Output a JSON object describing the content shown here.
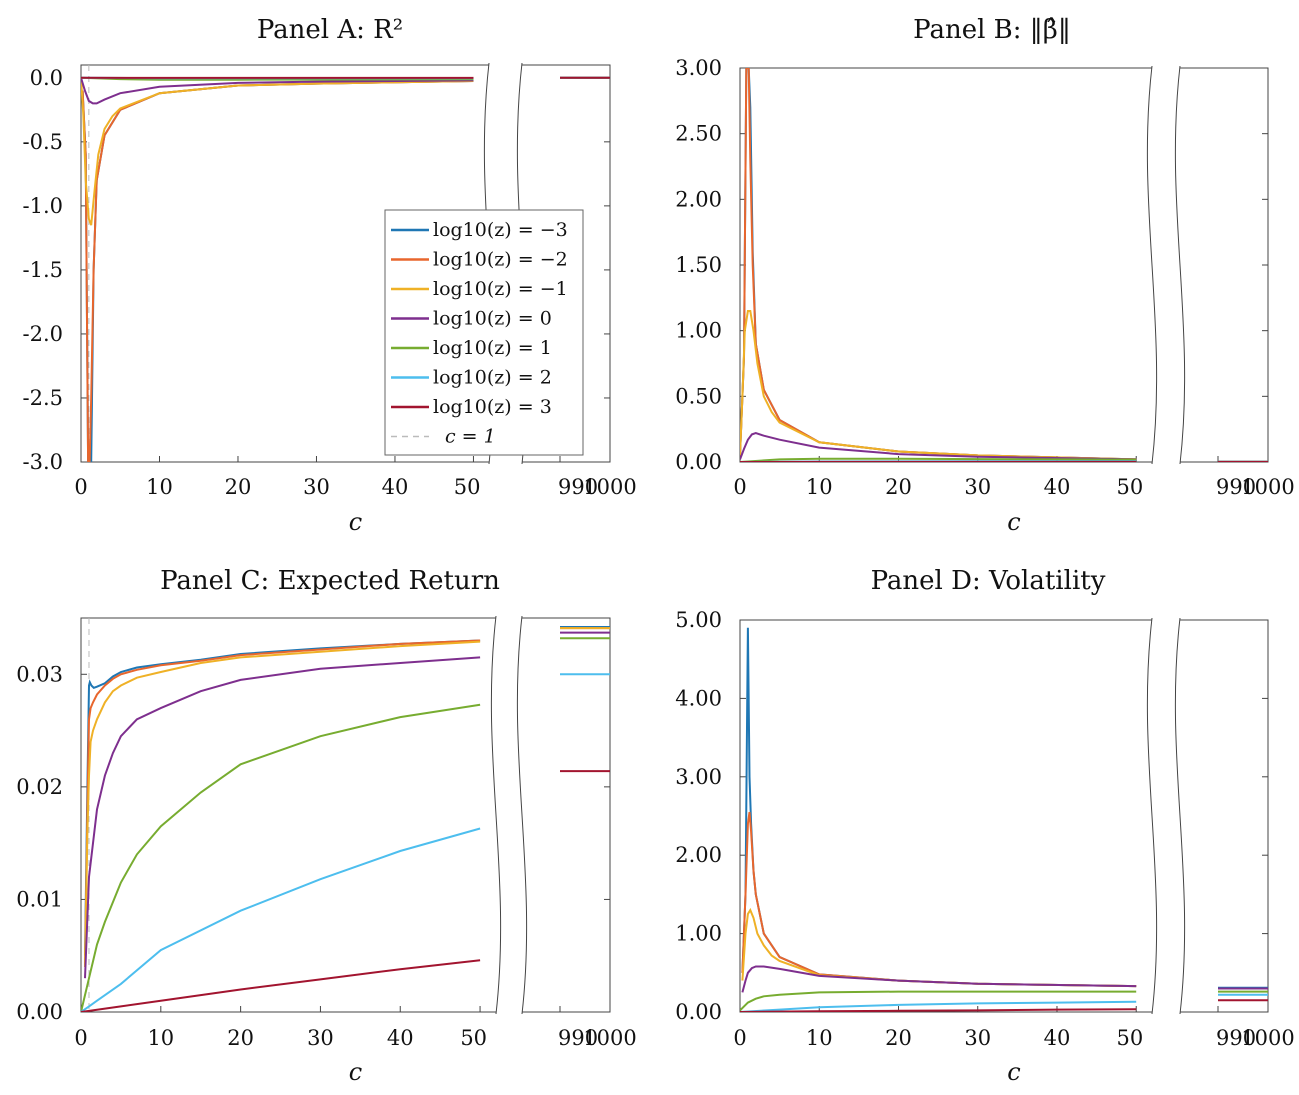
{
  "chart_data": [
    {
      "panel": "A",
      "title": "Panel A: R²",
      "type": "line",
      "xlabel": "c",
      "ylabel": "",
      "xlim_main": [
        0,
        53
      ],
      "xlim_tail": [
        980,
        1000
      ],
      "ylim": [
        -3.0,
        0.1
      ],
      "xticks": [
        "0",
        "10",
        "20",
        "30",
        "40",
        "50",
        "990",
        "1000"
      ],
      "yticks": [
        "0.0",
        "-0.5",
        "-1.0",
        "-1.5",
        "-2.0",
        "-2.5",
        "-3.0"
      ],
      "legend_position": "center-right",
      "reference_line": {
        "label": "c = 1",
        "x": 1
      },
      "series": [
        {
          "name": "log10(z) = -3",
          "color": "#1f77b4",
          "x": [
            0.2,
            0.6,
            0.9,
            1.0,
            1.1,
            1.3,
            1.6,
            2,
            3,
            5,
            10,
            20,
            30,
            50,
            990,
            1000
          ],
          "y": [
            -0.1,
            -0.6,
            -3.0,
            -3.0,
            -3.0,
            -3.0,
            -1.5,
            -0.8,
            -0.45,
            -0.25,
            -0.12,
            -0.06,
            -0.045,
            -0.025,
            0.0,
            0.0
          ]
        },
        {
          "name": "log10(z) = -2",
          "color": "#e8662d",
          "x": [
            0.2,
            0.6,
            0.9,
            1.0,
            1.1,
            1.3,
            1.6,
            2,
            3,
            5,
            10,
            20,
            30,
            50,
            990,
            1000
          ],
          "y": [
            -0.1,
            -0.6,
            -3.0,
            -3.0,
            -3.0,
            -2.5,
            -1.5,
            -0.8,
            -0.45,
            -0.25,
            -0.12,
            -0.06,
            -0.045,
            -0.025,
            0.0,
            0.0
          ]
        },
        {
          "name": "log10(z) = -1",
          "color": "#efb126",
          "x": [
            0,
            0.3,
            0.6,
            1.0,
            1.3,
            1.7,
            2.2,
            3,
            4,
            5,
            10,
            20,
            30,
            50,
            990,
            1000
          ],
          "y": [
            0,
            -0.3,
            -0.8,
            -1.1,
            -1.15,
            -0.9,
            -0.6,
            -0.4,
            -0.3,
            -0.24,
            -0.12,
            -0.06,
            -0.045,
            -0.025,
            0.0,
            0.0
          ]
        },
        {
          "name": "log10(z) = 0",
          "color": "#7e2f8e",
          "x": [
            0,
            0.5,
            1.0,
            1.5,
            2,
            3,
            5,
            10,
            20,
            30,
            50,
            990,
            1000
          ],
          "y": [
            0,
            -0.1,
            -0.18,
            -0.2,
            -0.2,
            -0.17,
            -0.12,
            -0.07,
            -0.04,
            -0.03,
            -0.02,
            0.0,
            0.0
          ]
        },
        {
          "name": "log10(z) = 1",
          "color": "#77ac30",
          "x": [
            0,
            5,
            10,
            20,
            30,
            50,
            990,
            1000
          ],
          "y": [
            0,
            -0.01,
            -0.015,
            -0.015,
            -0.014,
            -0.012,
            0.0,
            0.0
          ]
        },
        {
          "name": "log10(z) = 2",
          "color": "#4dbeee",
          "x": [
            0,
            10,
            30,
            50,
            990,
            1000
          ],
          "y": [
            0,
            -0.003,
            -0.004,
            -0.004,
            0.0,
            0.0
          ]
        },
        {
          "name": "log10(z) = 3",
          "color": "#a2142f",
          "x": [
            0,
            10,
            30,
            50,
            990,
            1000
          ],
          "y": [
            0,
            -0.001,
            -0.001,
            -0.001,
            0.0,
            0.0
          ]
        }
      ]
    },
    {
      "panel": "B",
      "title": "Panel B: ‖β̂‖",
      "type": "line",
      "xlabel": "c",
      "ylabel": "",
      "xlim_main": [
        0,
        53
      ],
      "xlim_tail": [
        980,
        1000
      ],
      "ylim": [
        0,
        3.0
      ],
      "xticks": [
        "0",
        "10",
        "20",
        "30",
        "40",
        "50",
        "990",
        "1000"
      ],
      "yticks": [
        "3.00",
        "2.50",
        "2.00",
        "1.50",
        "1.00",
        "0.50",
        "0.00"
      ],
      "series": [
        {
          "name": "log10(z) = -3",
          "color": "#1f77b4",
          "x": [
            0,
            0.5,
            0.8,
            1.0,
            1.1,
            1.3,
            1.6,
            2,
            3,
            5,
            10,
            20,
            30,
            50,
            990,
            1000
          ],
          "y": [
            0.05,
            0.8,
            3.0,
            3.0,
            3.0,
            2.7,
            1.6,
            0.9,
            0.55,
            0.32,
            0.15,
            0.08,
            0.05,
            0.02,
            0.001,
            0.001
          ]
        },
        {
          "name": "log10(z) = -2",
          "color": "#e8662d",
          "x": [
            0,
            0.5,
            0.8,
            1.0,
            1.1,
            1.3,
            1.6,
            2,
            3,
            5,
            10,
            20,
            30,
            50,
            990,
            1000
          ],
          "y": [
            0.05,
            0.8,
            3.0,
            3.0,
            3.0,
            2.3,
            1.5,
            0.9,
            0.55,
            0.32,
            0.15,
            0.08,
            0.05,
            0.02,
            0.001,
            0.001
          ]
        },
        {
          "name": "log10(z) = -1",
          "color": "#efb126",
          "x": [
            0,
            0.3,
            0.6,
            1.0,
            1.3,
            1.7,
            2.2,
            3,
            4,
            5,
            10,
            20,
            30,
            50,
            990,
            1000
          ],
          "y": [
            0.05,
            0.5,
            1.0,
            1.15,
            1.15,
            1.0,
            0.75,
            0.5,
            0.38,
            0.3,
            0.15,
            0.08,
            0.05,
            0.02,
            0.001,
            0.001
          ]
        },
        {
          "name": "log10(z) = 0",
          "color": "#7e2f8e",
          "x": [
            0,
            0.5,
            1.0,
            1.5,
            2,
            3,
            5,
            10,
            20,
            30,
            50,
            990,
            1000
          ],
          "y": [
            0.02,
            0.1,
            0.17,
            0.21,
            0.22,
            0.2,
            0.17,
            0.11,
            0.06,
            0.04,
            0.02,
            0.001,
            0.001
          ]
        },
        {
          "name": "log10(z) = 1",
          "color": "#77ac30",
          "x": [
            0,
            5,
            10,
            20,
            30,
            50,
            990,
            1000
          ],
          "y": [
            0,
            0.02,
            0.025,
            0.025,
            0.022,
            0.018,
            0.002,
            0.002
          ]
        },
        {
          "name": "log10(z) = 2",
          "color": "#4dbeee",
          "x": [
            0,
            10,
            30,
            50,
            990,
            1000
          ],
          "y": [
            0,
            0.004,
            0.005,
            0.005,
            0.002,
            0.002
          ]
        },
        {
          "name": "log10(z) = 3",
          "color": "#a2142f",
          "x": [
            0,
            10,
            30,
            50,
            990,
            1000
          ],
          "y": [
            0,
            0.001,
            0.001,
            0.001,
            0.0005,
            0.0005
          ]
        }
      ]
    },
    {
      "panel": "C",
      "title": "Panel C: Expected Return",
      "type": "line",
      "xlabel": "c",
      "ylabel": "",
      "xlim_main": [
        0,
        53
      ],
      "xlim_tail": [
        980,
        1000
      ],
      "ylim": [
        0,
        0.035
      ],
      "xticks": [
        "0",
        "10",
        "20",
        "30",
        "40",
        "50",
        "990",
        "1000"
      ],
      "yticks": [
        "0.03",
        "0.02",
        "0.01",
        "0.00"
      ],
      "series": [
        {
          "name": "log10(z) = -3",
          "color": "#1f77b4",
          "x": [
            0.5,
            0.8,
            1.0,
            1.1,
            1.3,
            1.6,
            2,
            3,
            4,
            5,
            7,
            10,
            15,
            20,
            30,
            40,
            50,
            990,
            1000
          ],
          "y": [
            0.005,
            0.02,
            0.029,
            0.0293,
            0.029,
            0.0288,
            0.0289,
            0.0292,
            0.0298,
            0.0302,
            0.0306,
            0.0309,
            0.0313,
            0.0318,
            0.0323,
            0.0327,
            0.033,
            0.0342,
            0.0342
          ]
        },
        {
          "name": "log10(z) = -2",
          "color": "#e8662d",
          "x": [
            0.5,
            0.8,
            1.0,
            1.2,
            1.5,
            2,
            3,
            4,
            5,
            7,
            10,
            15,
            20,
            30,
            40,
            50,
            990,
            1000
          ],
          "y": [
            0.004,
            0.018,
            0.026,
            0.027,
            0.0275,
            0.0282,
            0.029,
            0.0296,
            0.03,
            0.0304,
            0.0308,
            0.0312,
            0.0317,
            0.0322,
            0.0327,
            0.033,
            0.0341,
            0.0341
          ]
        },
        {
          "name": "log10(z) = -1",
          "color": "#efb126",
          "x": [
            0.5,
            0.8,
            1.0,
            1.2,
            1.5,
            2,
            3,
            4,
            5,
            7,
            10,
            15,
            20,
            30,
            40,
            50,
            990,
            1000
          ],
          "y": [
            0.004,
            0.016,
            0.021,
            0.024,
            0.025,
            0.026,
            0.0275,
            0.0285,
            0.029,
            0.0297,
            0.0302,
            0.031,
            0.0315,
            0.032,
            0.0325,
            0.0329,
            0.0341,
            0.0341
          ]
        },
        {
          "name": "log10(z) = 0",
          "color": "#7e2f8e",
          "x": [
            0.5,
            1,
            2,
            3,
            4,
            5,
            7,
            10,
            15,
            20,
            30,
            40,
            50,
            990,
            1000
          ],
          "y": [
            0.003,
            0.012,
            0.018,
            0.021,
            0.023,
            0.0245,
            0.026,
            0.027,
            0.0285,
            0.0295,
            0.0305,
            0.031,
            0.0315,
            0.0337,
            0.0337
          ]
        },
        {
          "name": "log10(z) = 1",
          "color": "#77ac30",
          "x": [
            0,
            1,
            2,
            3,
            5,
            7,
            10,
            15,
            20,
            30,
            40,
            50,
            990,
            1000
          ],
          "y": [
            0,
            0.003,
            0.006,
            0.008,
            0.0115,
            0.014,
            0.0165,
            0.0195,
            0.022,
            0.0245,
            0.0262,
            0.0273,
            0.0332,
            0.0332
          ]
        },
        {
          "name": "log10(z) = 2",
          "color": "#4dbeee",
          "x": [
            0,
            1,
            2,
            5,
            10,
            20,
            30,
            40,
            50,
            990,
            1000
          ],
          "y": [
            0,
            0.0005,
            0.001,
            0.0025,
            0.0055,
            0.009,
            0.0118,
            0.0143,
            0.0163,
            0.03,
            0.03
          ]
        },
        {
          "name": "log10(z) = 3",
          "color": "#a2142f",
          "x": [
            0,
            5,
            10,
            20,
            30,
            40,
            50,
            990,
            1000
          ],
          "y": [
            0,
            0.0005,
            0.001,
            0.002,
            0.0029,
            0.0038,
            0.0046,
            0.0214,
            0.0214
          ]
        }
      ]
    },
    {
      "panel": "D",
      "title": "Panel D: Volatility",
      "type": "line",
      "xlabel": "c",
      "ylabel": "",
      "xlim_main": [
        0,
        53
      ],
      "xlim_tail": [
        980,
        1000
      ],
      "ylim": [
        0,
        5.0
      ],
      "xticks": [
        "0",
        "10",
        "20",
        "30",
        "40",
        "50",
        "990",
        "1000"
      ],
      "yticks": [
        "5.00",
        "4.00",
        "3.00",
        "2.00",
        "1.00",
        "0.00"
      ],
      "series": [
        {
          "name": "log10(z) = -3",
          "color": "#1f77b4",
          "x": [
            0.3,
            0.7,
            1.0,
            1.2,
            1.4,
            1.7,
            2,
            3,
            5,
            10,
            20,
            30,
            50,
            990,
            1000
          ],
          "y": [
            0.5,
            1.5,
            4.9,
            3.0,
            2.4,
            1.8,
            1.5,
            1.0,
            0.7,
            0.48,
            0.4,
            0.36,
            0.33,
            0.31,
            0.31
          ]
        },
        {
          "name": "log10(z) = -2",
          "color": "#e8662d",
          "x": [
            0.3,
            0.7,
            1.0,
            1.2,
            1.4,
            1.7,
            2,
            3,
            5,
            10,
            20,
            30,
            50,
            990,
            1000
          ],
          "y": [
            0.5,
            1.5,
            2.4,
            2.55,
            2.3,
            1.8,
            1.5,
            1.0,
            0.7,
            0.48,
            0.4,
            0.36,
            0.33,
            0.3,
            0.3
          ]
        },
        {
          "name": "log10(z) = -1",
          "color": "#efb126",
          "x": [
            0.3,
            0.7,
            1.0,
            1.3,
            1.7,
            2.2,
            3,
            4,
            5,
            10,
            20,
            30,
            50,
            990,
            1000
          ],
          "y": [
            0.4,
            1.0,
            1.25,
            1.3,
            1.2,
            1.0,
            0.85,
            0.72,
            0.65,
            0.47,
            0.4,
            0.36,
            0.33,
            0.3,
            0.3
          ]
        },
        {
          "name": "log10(z) = 0",
          "color": "#7e2f8e",
          "x": [
            0.3,
            0.7,
            1,
            1.5,
            2,
            3,
            5,
            10,
            20,
            30,
            50,
            990,
            1000
          ],
          "y": [
            0.25,
            0.4,
            0.5,
            0.56,
            0.58,
            0.58,
            0.55,
            0.46,
            0.4,
            0.36,
            0.33,
            0.3,
            0.3
          ]
        },
        {
          "name": "log10(z) = 1",
          "color": "#77ac30",
          "x": [
            0,
            1,
            2,
            3,
            5,
            10,
            20,
            30,
            50,
            990,
            1000
          ],
          "y": [
            0.02,
            0.12,
            0.17,
            0.2,
            0.22,
            0.25,
            0.26,
            0.26,
            0.26,
            0.26,
            0.26
          ]
        },
        {
          "name": "log10(z) = 2",
          "color": "#4dbeee",
          "x": [
            0,
            5,
            10,
            20,
            30,
            40,
            50,
            990,
            1000
          ],
          "y": [
            0,
            0.03,
            0.06,
            0.09,
            0.11,
            0.12,
            0.13,
            0.22,
            0.22
          ]
        },
        {
          "name": "log10(z) = 3",
          "color": "#a2142f",
          "x": [
            0,
            10,
            20,
            30,
            40,
            50,
            990,
            1000
          ],
          "y": [
            0,
            0.01,
            0.015,
            0.02,
            0.03,
            0.035,
            0.15,
            0.15
          ]
        }
      ]
    }
  ],
  "legend": {
    "entries": [
      {
        "label": "log10(z) = −3",
        "color": "#1f77b4"
      },
      {
        "label": "log10(z) = −2",
        "color": "#e8662d"
      },
      {
        "label": "log10(z) = −1",
        "color": "#efb126"
      },
      {
        "label": "log10(z) = 0",
        "color": "#7e2f8e"
      },
      {
        "label": "log10(z) = 1",
        "color": "#77ac30"
      },
      {
        "label": "log10(z) = 2",
        "color": "#4dbeee"
      },
      {
        "label": "log10(z) = 3",
        "color": "#a2142f"
      }
    ],
    "ref_label": "c = 1"
  }
}
